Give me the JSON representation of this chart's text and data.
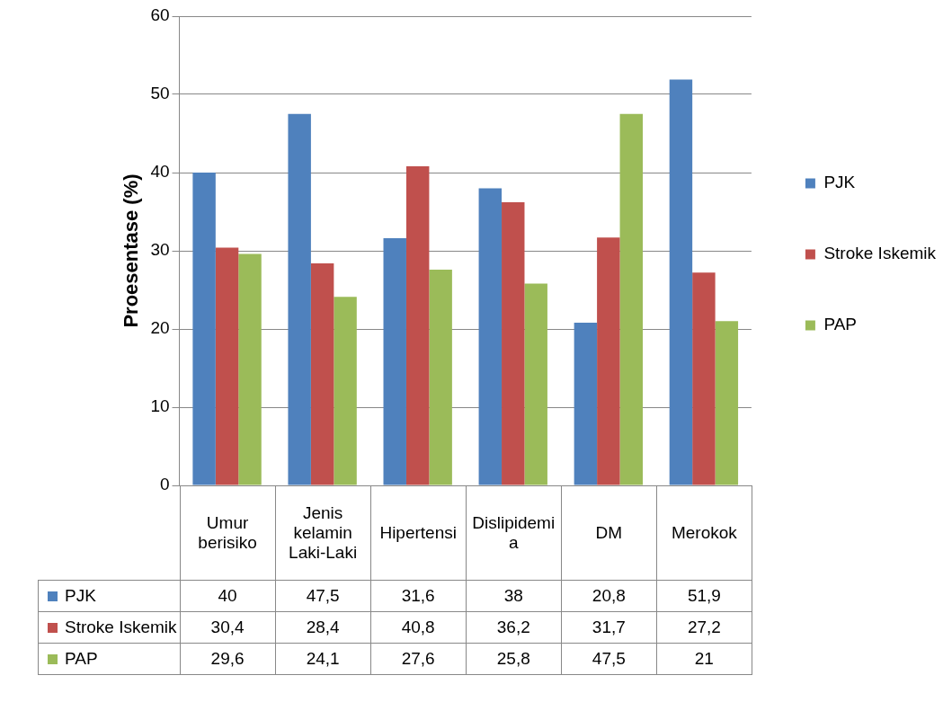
{
  "chart_data": {
    "type": "bar",
    "ylabel": "Proesentase (%)",
    "categories": [
      "Umur berisiko",
      "Jenis kelamin Laki-Laki",
      "Hipertensi",
      "Dislipidemia",
      "DM",
      "Merokok"
    ],
    "series": [
      {
        "name": "PJK",
        "color": "#4f81bd",
        "values": [
          40,
          47.5,
          31.6,
          38,
          20.8,
          51.9
        ],
        "value_labels": [
          "40",
          "47,5",
          "31,6",
          "38",
          "20,8",
          "51,9"
        ]
      },
      {
        "name": "Stroke Iskemik",
        "color": "#c0504d",
        "values": [
          30.4,
          28.4,
          40.8,
          36.2,
          31.7,
          27.2
        ],
        "value_labels": [
          "30,4",
          "28,4",
          "40,8",
          "36,2",
          "31,7",
          "27,2"
        ]
      },
      {
        "name": "PAP",
        "color": "#9bbb59",
        "values": [
          29.6,
          24.1,
          27.6,
          25.8,
          47.5,
          21
        ],
        "value_labels": [
          "29,6",
          "24,1",
          "27,6",
          "25,8",
          "47,5",
          "21"
        ]
      }
    ],
    "ylim": [
      0,
      60
    ],
    "yticks": [
      0,
      10,
      20,
      30,
      40,
      50,
      60
    ],
    "grid": "y",
    "legend": "right"
  }
}
